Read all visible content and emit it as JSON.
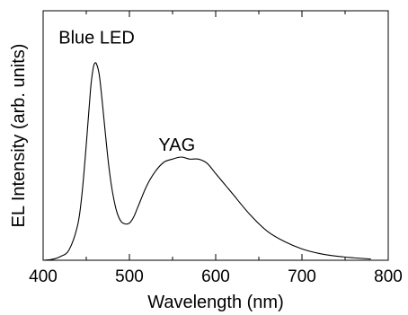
{
  "chart_data": {
    "type": "line",
    "title": "",
    "xlabel": "Wavelength (nm)",
    "ylabel": "EL Intensity (arb. units)",
    "xlim": [
      400,
      800
    ],
    "ylim": [
      0,
      1.0
    ],
    "x_ticks": [
      "400",
      "500",
      "600",
      "700",
      "800"
    ],
    "y_ticks_labeled": false,
    "grid": false,
    "legend": "none",
    "annotations": [
      {
        "text": "Blue LED",
        "x": 462,
        "y": 1.05
      },
      {
        "text": "YAG",
        "x": 555,
        "y": 0.53
      }
    ],
    "series": [
      {
        "color": "#000000",
        "x": [
          400,
          410,
          420,
          430,
          440,
          445,
          450,
          455,
          458,
          460,
          462,
          465,
          468,
          472,
          476,
          480,
          485,
          490,
          495,
          500,
          505,
          510,
          520,
          530,
          540,
          550,
          560,
          570,
          580,
          590,
          600,
          610,
          620,
          640,
          660,
          680,
          700,
          720,
          740,
          760,
          780
        ],
        "y": [
          0.0,
          0.004,
          0.018,
          0.05,
          0.17,
          0.32,
          0.56,
          0.83,
          0.93,
          0.955,
          0.95,
          0.9,
          0.79,
          0.62,
          0.46,
          0.34,
          0.24,
          0.19,
          0.176,
          0.18,
          0.21,
          0.26,
          0.36,
          0.43,
          0.475,
          0.49,
          0.5,
          0.49,
          0.49,
          0.47,
          0.42,
          0.37,
          0.32,
          0.22,
          0.14,
          0.09,
          0.055,
          0.033,
          0.02,
          0.012,
          0.006
        ]
      }
    ]
  }
}
